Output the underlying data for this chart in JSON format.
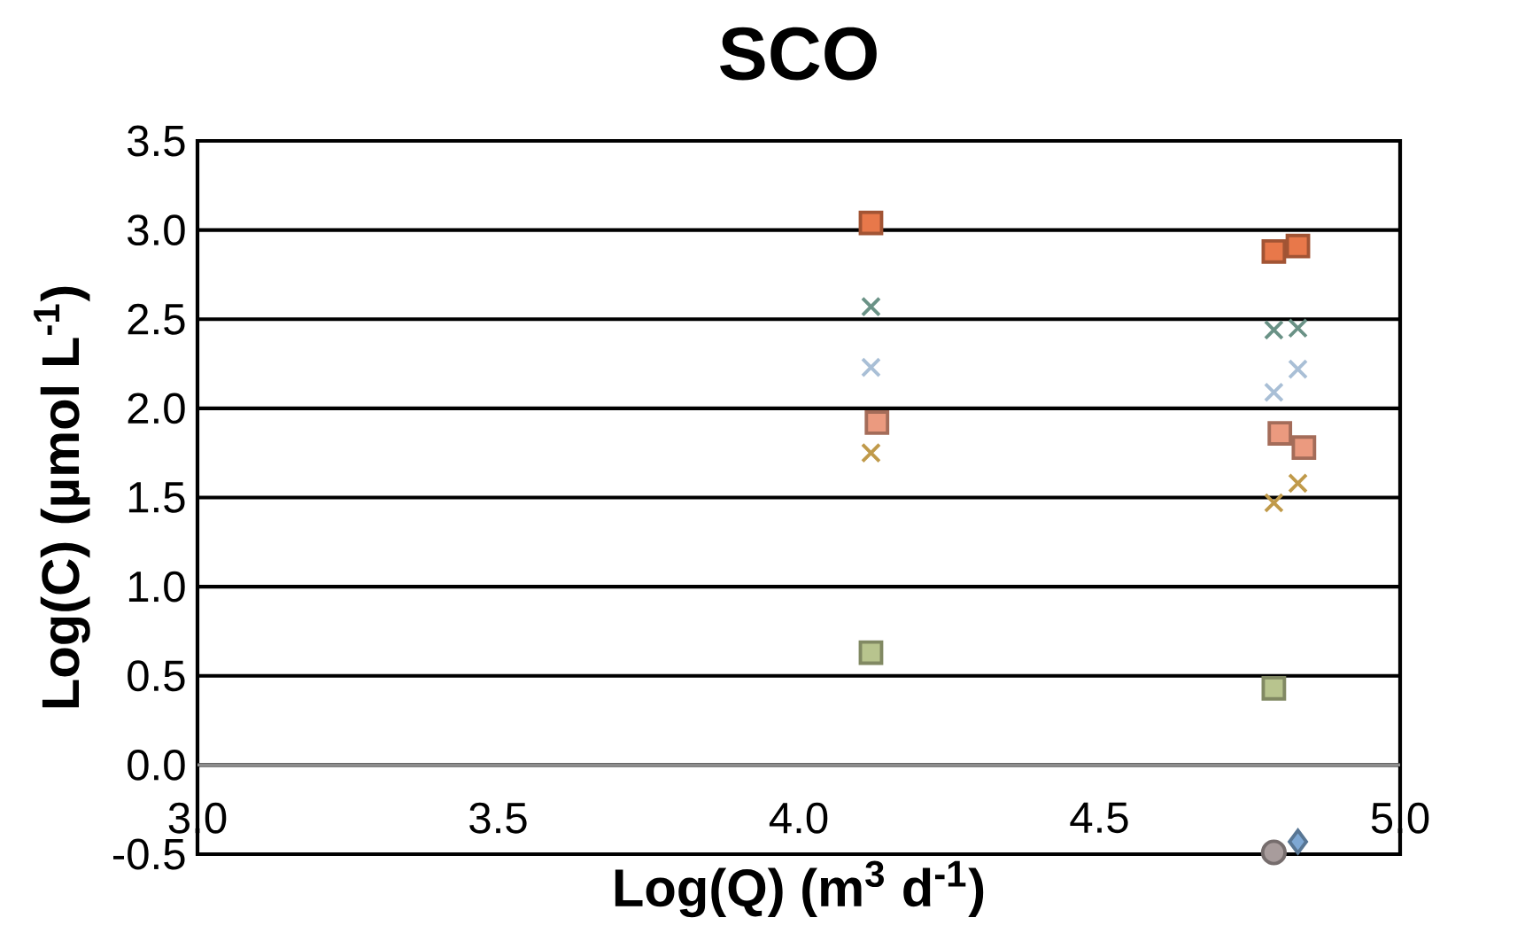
{
  "chart_data": {
    "type": "scatter",
    "title": "SCO",
    "xlabel": "Log(Q) (m$^{3}$ d$^{-1}$)",
    "ylabel": "Log(C) (µmol L$^{-1}$)",
    "xlim": [
      3.0,
      5.0
    ],
    "xticks": [
      {
        "value": 3.0,
        "label": "3.0"
      },
      {
        "value": 3.5,
        "label": "3.5"
      },
      {
        "value": 4.0,
        "label": "4.0"
      },
      {
        "value": 4.5,
        "label": "4.5"
      },
      {
        "value": 5.0,
        "label": "5.0"
      }
    ],
    "ylim": [
      -0.5,
      3.5
    ],
    "yticks": [
      {
        "value": -0.5,
        "label": "-0.5"
      },
      {
        "value": 0.0,
        "label": "0.0"
      },
      {
        "value": 0.5,
        "label": "0.5"
      },
      {
        "value": 1.0,
        "label": "1.0"
      },
      {
        "value": 1.5,
        "label": "1.5"
      },
      {
        "value": 2.0,
        "label": "2.0"
      },
      {
        "value": 2.5,
        "label": "2.5"
      },
      {
        "value": 3.0,
        "label": "3.0"
      },
      {
        "value": 3.5,
        "label": "3.5"
      }
    ],
    "grid": "y",
    "series": [
      {
        "color": "#e8784a",
        "marker": "square",
        "x": [
          4.12,
          4.79,
          4.83
        ],
        "values": [
          3.04,
          2.88,
          2.91
        ]
      },
      {
        "color": "#6a9286",
        "marker": "cross",
        "x": [
          4.12,
          4.79,
          4.83
        ],
        "values": [
          2.57,
          2.44,
          2.45
        ]
      },
      {
        "color": "#a9bfd6",
        "marker": "cross",
        "x": [
          4.12,
          4.79,
          4.83
        ],
        "values": [
          2.23,
          2.09,
          2.22
        ]
      },
      {
        "color": "#eb9a7f",
        "marker": "square",
        "x": [
          4.13,
          4.8,
          4.84
        ],
        "values": [
          1.92,
          1.86,
          1.78
        ]
      },
      {
        "color": "#c09a4a",
        "marker": "cross",
        "x": [
          4.12,
          4.79,
          4.83
        ],
        "values": [
          1.75,
          1.47,
          1.58
        ]
      },
      {
        "color": "#b8c48e",
        "marker": "square",
        "x": [
          4.12,
          4.79
        ],
        "values": [
          0.63,
          0.43
        ]
      },
      {
        "color": "#a89c9c",
        "marker": "circle",
        "x": [
          4.79
        ],
        "values": [
          -0.49
        ]
      },
      {
        "color": "#7ea8d4",
        "marker": "diamond",
        "x": [
          4.83
        ],
        "values": [
          -0.43
        ]
      }
    ]
  }
}
